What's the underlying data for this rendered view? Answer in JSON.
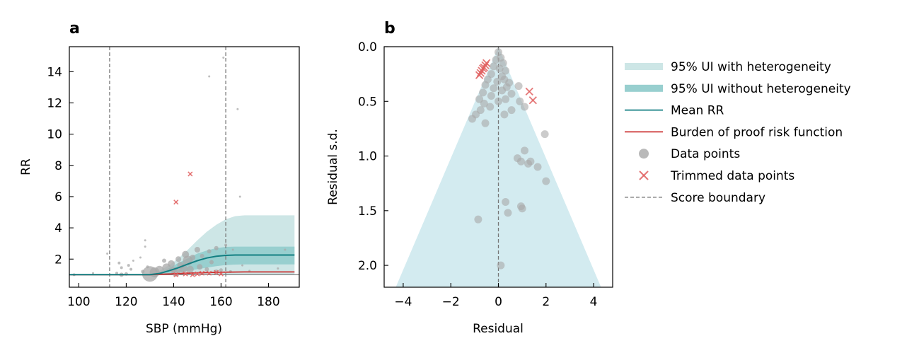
{
  "colors": {
    "ui_with_het": "#cde6e6",
    "ui_without_het": "#98cfcf",
    "mean_line": "#127f82",
    "bop_line": "#cc3333",
    "data_point": "#a8a8a8",
    "trimmed_point": "#e06060",
    "boundary": "#777777",
    "funnel_fill": "#d3ebf0"
  },
  "legend": {
    "items": [
      {
        "key": "ui_het",
        "label": "95% UI with heterogeneity"
      },
      {
        "key": "ui_nohet",
        "label": "95% UI without heterogeneity"
      },
      {
        "key": "mean",
        "label": "Mean RR"
      },
      {
        "key": "bop",
        "label": "Burden of proof risk function"
      },
      {
        "key": "data",
        "label": "Data points"
      },
      {
        "key": "trimmed",
        "label": "Trimmed data points"
      },
      {
        "key": "boundary",
        "label": "Score boundary"
      }
    ]
  },
  "chart_data": [
    {
      "panel": "a",
      "type": "line",
      "xlabel": "SBP (mmHg)",
      "ylabel": "RR",
      "xlim": [
        96,
        193
      ],
      "ylim": [
        0.2,
        15.6
      ],
      "xticks": [
        100,
        120,
        140,
        160,
        180
      ],
      "yticks": [
        2,
        4,
        6,
        8,
        10,
        12,
        14
      ],
      "score_boundaries": [
        113,
        162
      ],
      "reference_y": 1.0,
      "mean_curve": {
        "x": [
          96,
          130,
          134,
          138,
          142,
          146,
          150,
          154,
          158,
          162,
          166,
          170,
          191
        ],
        "y": [
          1.0,
          1.0,
          1.08,
          1.25,
          1.45,
          1.68,
          1.9,
          2.07,
          2.18,
          2.24,
          2.26,
          2.26,
          2.26
        ]
      },
      "bop_curve": {
        "x": [
          96,
          130,
          140,
          150,
          160,
          170,
          191
        ],
        "y": [
          1.0,
          1.0,
          1.06,
          1.12,
          1.16,
          1.18,
          1.18
        ]
      },
      "ui_with_het": {
        "x": [
          130,
          134,
          138,
          142,
          146,
          150,
          154,
          158,
          162,
          166,
          170,
          191
        ],
        "lower": [
          1.0,
          1.0,
          1.0,
          1.0,
          1.0,
          1.0,
          1.0,
          1.0,
          1.0,
          1.0,
          1.0,
          1.0
        ],
        "upper": [
          1.0,
          1.25,
          1.6,
          2.05,
          2.6,
          3.2,
          3.75,
          4.2,
          4.55,
          4.75,
          4.8,
          4.8
        ]
      },
      "ui_without_het": {
        "x": [
          130,
          134,
          138,
          142,
          146,
          150,
          154,
          158,
          162,
          166,
          170,
          191
        ],
        "lower": [
          1.0,
          1.0,
          1.05,
          1.15,
          1.25,
          1.35,
          1.45,
          1.55,
          1.62,
          1.65,
          1.66,
          1.66
        ],
        "upper": [
          1.0,
          1.12,
          1.42,
          1.75,
          2.05,
          2.35,
          2.55,
          2.7,
          2.78,
          2.8,
          2.8,
          2.8
        ]
      },
      "data_points": [
        {
          "x": 98,
          "y": 1.0,
          "s": 2
        },
        {
          "x": 106,
          "y": 1.1,
          "s": 1.5
        },
        {
          "x": 112,
          "y": 2.35,
          "s": 1.5
        },
        {
          "x": 116,
          "y": 1.1,
          "s": 2
        },
        {
          "x": 117,
          "y": 1.75,
          "s": 2
        },
        {
          "x": 118,
          "y": 1.45,
          "s": 2
        },
        {
          "x": 118,
          "y": 1.0,
          "s": 3
        },
        {
          "x": 120,
          "y": 1.05,
          "s": 2.5
        },
        {
          "x": 121,
          "y": 1.6,
          "s": 2
        },
        {
          "x": 122,
          "y": 1.35,
          "s": 2
        },
        {
          "x": 123,
          "y": 1.9,
          "s": 1.5
        },
        {
          "x": 126,
          "y": 2.1,
          "s": 1.5
        },
        {
          "x": 127,
          "y": 1.2,
          "s": 2.5
        },
        {
          "x": 128,
          "y": 3.2,
          "s": 1.5
        },
        {
          "x": 128,
          "y": 2.8,
          "s": 1.5
        },
        {
          "x": 129,
          "y": 1.5,
          "s": 2
        },
        {
          "x": 130,
          "y": 1.05,
          "s": 11
        },
        {
          "x": 132,
          "y": 1.15,
          "s": 7
        },
        {
          "x": 134,
          "y": 1.3,
          "s": 6
        },
        {
          "x": 136,
          "y": 1.9,
          "s": 3
        },
        {
          "x": 137,
          "y": 1.45,
          "s": 6
        },
        {
          "x": 139,
          "y": 1.7,
          "s": 5
        },
        {
          "x": 140,
          "y": 1.3,
          "s": 5
        },
        {
          "x": 141,
          "y": 1.15,
          "s": 6
        },
        {
          "x": 142,
          "y": 2.0,
          "s": 4
        },
        {
          "x": 143,
          "y": 1.6,
          "s": 5
        },
        {
          "x": 144,
          "y": 1.4,
          "s": 6
        },
        {
          "x": 145,
          "y": 2.3,
          "s": 5
        },
        {
          "x": 146,
          "y": 1.9,
          "s": 7
        },
        {
          "x": 147,
          "y": 1.35,
          "s": 5
        },
        {
          "x": 148,
          "y": 2.1,
          "s": 4
        },
        {
          "x": 150,
          "y": 2.6,
          "s": 4
        },
        {
          "x": 151,
          "y": 1.5,
          "s": 4
        },
        {
          "x": 152,
          "y": 2.2,
          "s": 3
        },
        {
          "x": 154,
          "y": 1.35,
          "s": 3
        },
        {
          "x": 155,
          "y": 2.5,
          "s": 3
        },
        {
          "x": 155,
          "y": 13.7,
          "s": 1.5
        },
        {
          "x": 156,
          "y": 1.8,
          "s": 3
        },
        {
          "x": 158,
          "y": 2.7,
          "s": 3
        },
        {
          "x": 158,
          "y": 1.2,
          "s": 3
        },
        {
          "x": 160,
          "y": 1.3,
          "s": 2.5
        },
        {
          "x": 161,
          "y": 14.9,
          "s": 1.5
        },
        {
          "x": 162,
          "y": 2.9,
          "s": 2
        },
        {
          "x": 164,
          "y": 1.2,
          "s": 2
        },
        {
          "x": 165,
          "y": 2.6,
          "s": 1.5
        },
        {
          "x": 167,
          "y": 11.6,
          "s": 1.5
        },
        {
          "x": 168,
          "y": 6.0,
          "s": 1.5
        },
        {
          "x": 169,
          "y": 1.6,
          "s": 1.5
        },
        {
          "x": 172,
          "y": 1.25,
          "s": 1.5
        },
        {
          "x": 184,
          "y": 1.4,
          "s": 1.5
        },
        {
          "x": 187,
          "y": 2.6,
          "s": 1.5
        }
      ],
      "trimmed_points": [
        {
          "x": 141,
          "y": 5.65
        },
        {
          "x": 147,
          "y": 7.45
        },
        {
          "x": 141,
          "y": 1.0
        },
        {
          "x": 145,
          "y": 1.05
        },
        {
          "x": 148,
          "y": 1.0
        },
        {
          "x": 150,
          "y": 1.05
        },
        {
          "x": 152,
          "y": 1.1
        },
        {
          "x": 155,
          "y": 1.1
        },
        {
          "x": 158,
          "y": 1.15
        },
        {
          "x": 160,
          "y": 1.05
        }
      ]
    },
    {
      "panel": "b",
      "type": "scatter",
      "xlabel": "Residual",
      "ylabel": "Residual s.d.",
      "xlim": [
        -4.8,
        4.8
      ],
      "ylim": [
        0.0,
        2.2
      ],
      "y_inverted": true,
      "xticks": [
        -4,
        -2,
        0,
        2,
        4
      ],
      "xtick_labels": [
        "−4",
        "−2",
        "0",
        "2",
        "4"
      ],
      "yticks": [
        0.0,
        0.5,
        1.0,
        1.5,
        2.0
      ],
      "ytick_labels": [
        "0.0",
        "0.5",
        "1.0",
        "1.5",
        "2.0"
      ],
      "funnel_slope": 1.96,
      "data_points": [
        {
          "x": 0.0,
          "y": 0.05
        },
        {
          "x": 0.1,
          "y": 0.1
        },
        {
          "x": -0.1,
          "y": 0.12
        },
        {
          "x": 0.2,
          "y": 0.15
        },
        {
          "x": -0.2,
          "y": 0.18
        },
        {
          "x": 0.05,
          "y": 0.2
        },
        {
          "x": 0.3,
          "y": 0.22
        },
        {
          "x": -0.3,
          "y": 0.25
        },
        {
          "x": 0.15,
          "y": 0.27
        },
        {
          "x": 0.25,
          "y": 0.3
        },
        {
          "x": -0.45,
          "y": 0.3
        },
        {
          "x": -0.05,
          "y": 0.32
        },
        {
          "x": 0.45,
          "y": 0.33
        },
        {
          "x": -0.55,
          "y": 0.35
        },
        {
          "x": 0.35,
          "y": 0.37
        },
        {
          "x": -0.2,
          "y": 0.38
        },
        {
          "x": 0.15,
          "y": 0.4
        },
        {
          "x": -0.65,
          "y": 0.42
        },
        {
          "x": 0.55,
          "y": 0.43
        },
        {
          "x": -0.3,
          "y": 0.45
        },
        {
          "x": 0.85,
          "y": 0.36
        },
        {
          "x": -0.8,
          "y": 0.48
        },
        {
          "x": 0.3,
          "y": 0.48
        },
        {
          "x": 0.0,
          "y": 0.5
        },
        {
          "x": 0.9,
          "y": 0.5
        },
        {
          "x": -0.6,
          "y": 0.52
        },
        {
          "x": -0.35,
          "y": 0.55
        },
        {
          "x": 0.55,
          "y": 0.58
        },
        {
          "x": -0.75,
          "y": 0.58
        },
        {
          "x": -0.95,
          "y": 0.62
        },
        {
          "x": -1.1,
          "y": 0.66
        },
        {
          "x": 0.25,
          "y": 0.62
        },
        {
          "x": -0.55,
          "y": 0.7
        },
        {
          "x": 1.1,
          "y": 0.55
        },
        {
          "x": 1.95,
          "y": 0.8
        },
        {
          "x": 1.1,
          "y": 0.95
        },
        {
          "x": 0.8,
          "y": 1.02
        },
        {
          "x": 0.95,
          "y": 1.05
        },
        {
          "x": 1.25,
          "y": 1.07
        },
        {
          "x": 1.65,
          "y": 1.1
        },
        {
          "x": 1.35,
          "y": 1.05
        },
        {
          "x": 2.0,
          "y": 1.23
        },
        {
          "x": 0.3,
          "y": 1.42
        },
        {
          "x": 0.95,
          "y": 1.46
        },
        {
          "x": 1.0,
          "y": 1.48
        },
        {
          "x": 0.4,
          "y": 1.52
        },
        {
          "x": -0.85,
          "y": 1.58
        },
        {
          "x": 0.1,
          "y": 2.0
        }
      ],
      "trimmed_points": [
        {
          "x": -0.5,
          "y": 0.15
        },
        {
          "x": -0.55,
          "y": 0.17
        },
        {
          "x": -0.6,
          "y": 0.19
        },
        {
          "x": -0.65,
          "y": 0.2
        },
        {
          "x": -0.7,
          "y": 0.22
        },
        {
          "x": -0.75,
          "y": 0.24
        },
        {
          "x": -0.8,
          "y": 0.26
        },
        {
          "x": 1.3,
          "y": 0.41
        },
        {
          "x": 1.45,
          "y": 0.49
        }
      ]
    }
  ]
}
